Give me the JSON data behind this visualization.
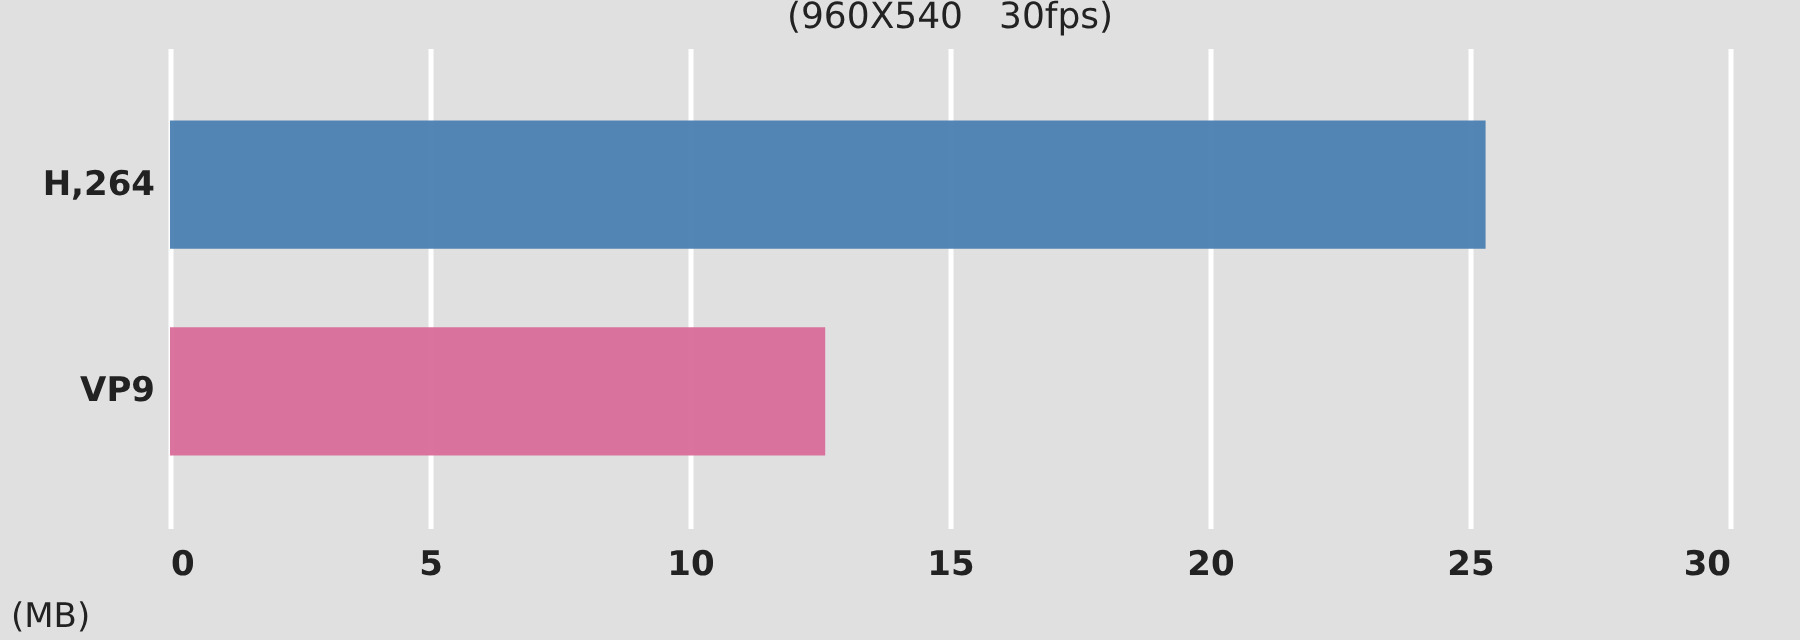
{
  "chart_data": {
    "type": "bar",
    "orientation": "horizontal",
    "title": "(960X540　30fps)",
    "xlabel": "(MB)",
    "categories": [
      "H,264",
      "VP9"
    ],
    "values": [
      25.3,
      12.6
    ],
    "colors": [
      "#4a7fb0",
      "#d96b9a"
    ],
    "xlim": [
      0,
      30
    ],
    "xticks": [
      0,
      5,
      10,
      15,
      20,
      25,
      30
    ],
    "grid": "x"
  }
}
